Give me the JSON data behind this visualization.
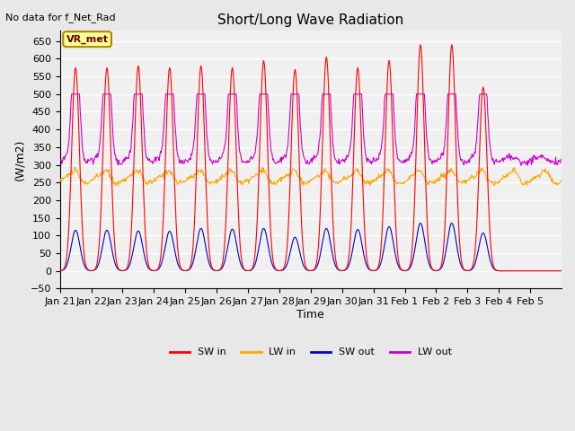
{
  "title": "Short/Long Wave Radiation",
  "xlabel": "Time",
  "ylabel": "(W/m2)",
  "ylim": [
    -50,
    680
  ],
  "yticks": [
    -50,
    0,
    50,
    100,
    150,
    200,
    250,
    300,
    350,
    400,
    450,
    500,
    550,
    600,
    650
  ],
  "no_data_text": "No data for f_Net_Rad",
  "legend_box_text": "VR_met",
  "legend_entries": [
    "SW in",
    "LW in",
    "SW out",
    "LW out"
  ],
  "line_colors": [
    "#ff0000",
    "#ffa500",
    "#0000cd",
    "#cc00cc"
  ],
  "background_color": "#e8e8e8",
  "plot_bg_color": "#f0f0f0",
  "grid_color": "#ffffff",
  "n_days": 16,
  "day_labels": [
    "Jan 21",
    "Jan 22",
    "Jan 23",
    "Jan 24",
    "Jan 25",
    "Jan 26",
    "Jan 27",
    "Jan 28",
    "Jan 29",
    "Jan 30",
    "Jan 31",
    "Feb 1",
    "Feb 2",
    "Feb 3",
    "Feb 4",
    "Feb 5"
  ],
  "sw_in_peaks": [
    575,
    575,
    580,
    575,
    580,
    575,
    595,
    570,
    605,
    575,
    595,
    640,
    640,
    520,
    0,
    0
  ],
  "sw_out_peaks": [
    115,
    115,
    113,
    112,
    120,
    118,
    120,
    95,
    120,
    117,
    125,
    135,
    135,
    107,
    0,
    0
  ],
  "lw_in_base": 260,
  "lw_out_base": 315
}
